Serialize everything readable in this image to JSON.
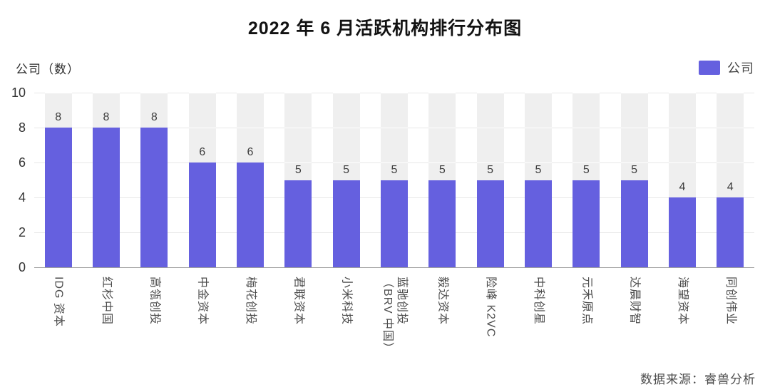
{
  "title": "2022 年 6 月活跃机构排行分布图",
  "y_axis_unit": "公司（数）",
  "legend": {
    "label": "公司"
  },
  "source": "数据来源：睿兽分析",
  "colors": {
    "bar": "#6560df",
    "track": "#efefef",
    "gridline": "#e8e8e8",
    "baseline": "#a0a0a0"
  },
  "chart_data": {
    "type": "bar",
    "title": "2022 年 6 月活跃机构排行分布图",
    "categories": [
      "IDG 资本",
      "红杉中国",
      "高瓴创投",
      "中金资本",
      "梅花创投",
      "君联资本",
      "小米科技",
      "蓝驰创投\n（BRV 中国）",
      "毅达资本",
      "险峰 K2VC",
      "中科创星",
      "元禾原点",
      "达晨财智",
      "海望资本",
      "同创伟业"
    ],
    "values": [
      8,
      8,
      8,
      6,
      6,
      5,
      5,
      5,
      5,
      5,
      5,
      5,
      5,
      4,
      4
    ],
    "xlabel": "",
    "ylabel": "公司（数）",
    "ylim": [
      0,
      10
    ],
    "yticks": [
      0,
      2,
      4,
      6,
      8,
      10
    ],
    "legend_entries": [
      "公司"
    ],
    "legend_position": "top-right",
    "grid": true,
    "bar_color": "#6560df"
  }
}
